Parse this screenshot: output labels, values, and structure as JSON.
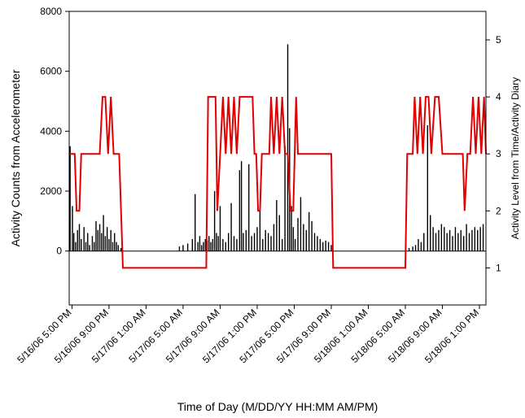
{
  "chart_data": {
    "type": "line",
    "xlabel": "Time of Day (M/DD/YY HH:MM AM/PM)",
    "ylabel_left": "Activity Counts from Accelerometer",
    "ylabel_right": "Activity Level from Time/Activity Diary",
    "x_unit": "hours from 5/16/06 5:00 PM",
    "xlim": [
      -0.3,
      44.7
    ],
    "ylim_left": [
      -1800,
      8000
    ],
    "ylim_right": [
      0.35,
      5.5
    ],
    "x_tick_values": [
      0,
      4,
      8,
      12,
      16,
      20,
      24,
      28,
      32,
      36,
      40,
      44
    ],
    "x_tick_labels": [
      "5/16/06 5:00 PM",
      "5/16/06 9:00 PM",
      "5/17/06 1:00 AM",
      "5/17/06 5:00 AM",
      "5/17/06 9:00 AM",
      "5/17/06 1:00 PM",
      "5/17/06 5:00 PM",
      "5/17/06 9:00 PM",
      "5/18/06 1:00 AM",
      "5/18/06 5:00 AM",
      "5/18/06 9:00 AM",
      "5/18/06 1:00 PM"
    ],
    "y_left_ticks": [
      0,
      2000,
      4000,
      6000,
      8000
    ],
    "y_left_tick_labels": [
      "0",
      "2000",
      "4000",
      "6000",
      "8000"
    ],
    "y_right_ticks": [
      1,
      2,
      3,
      4,
      5
    ],
    "y_right_tick_labels": [
      "1",
      "2",
      "3",
      "4",
      "5"
    ],
    "grid": false,
    "colors": {
      "counts": "#000000",
      "diary": "#e00000"
    },
    "series": [
      {
        "axis": "left",
        "style": "spikes",
        "x": [
          -0.2,
          0.05,
          0.2,
          0.4,
          0.6,
          0.8,
          1.0,
          1.3,
          1.5,
          1.7,
          1.9,
          2.2,
          2.4,
          2.6,
          2.8,
          3.0,
          3.2,
          3.4,
          3.6,
          3.8,
          4.0,
          4.2,
          4.4,
          4.6,
          4.8,
          5.0,
          5.3,
          11.6,
          12.0,
          12.5,
          13.0,
          13.3,
          13.6,
          13.8,
          14.0,
          14.2,
          14.4,
          14.6,
          14.8,
          15.0,
          15.2,
          15.4,
          15.6,
          15.8,
          16.0,
          16.3,
          16.6,
          16.9,
          17.2,
          17.5,
          17.8,
          18.1,
          18.3,
          18.5,
          18.8,
          19.1,
          19.4,
          19.7,
          20.0,
          20.3,
          20.6,
          20.9,
          21.2,
          21.5,
          21.8,
          22.1,
          22.4,
          22.7,
          23.0,
          23.3,
          23.5,
          23.7,
          23.9,
          24.1,
          24.4,
          24.7,
          25.0,
          25.3,
          25.6,
          25.9,
          26.2,
          26.5,
          26.8,
          27.1,
          27.4,
          27.7,
          28.0,
          36.4,
          36.8,
          37.1,
          37.4,
          37.7,
          38.0,
          38.4,
          38.7,
          39.0,
          39.3,
          39.6,
          39.9,
          40.2,
          40.5,
          40.8,
          41.1,
          41.4,
          41.7,
          42.0,
          42.3,
          42.6,
          42.9,
          43.2,
          43.5,
          43.8,
          44.1,
          44.4
        ],
        "y": [
          3500,
          1500,
          600,
          300,
          700,
          900,
          400,
          800,
          300,
          600,
          200,
          500,
          300,
          1000,
          700,
          900,
          600,
          1200,
          500,
          800,
          400,
          700,
          300,
          600,
          300,
          200,
          100,
          150,
          200,
          250,
          400,
          1900,
          300,
          500,
          200,
          300,
          400,
          350,
          500,
          300,
          400,
          2000,
          600,
          500,
          1500,
          400,
          300,
          600,
          1600,
          500,
          400,
          2700,
          3000,
          600,
          700,
          2900,
          500,
          600,
          800,
          1400,
          400,
          700,
          600,
          500,
          900,
          1700,
          1200,
          400,
          3500,
          6900,
          4100,
          1500,
          800,
          400,
          1100,
          1800,
          900,
          700,
          1300,
          1000,
          600,
          500,
          400,
          300,
          350,
          300,
          200,
          100,
          150,
          200,
          400,
          300,
          600,
          4200,
          1200,
          800,
          600,
          700,
          900,
          800,
          600,
          700,
          500,
          800,
          600,
          700,
          500,
          900,
          600,
          700,
          800,
          700,
          800,
          900
        ]
      },
      {
        "axis": "right",
        "style": "step-line",
        "x": [
          -0.3,
          0.0,
          0.3,
          0.5,
          0.8,
          1.0,
          3.0,
          3.3,
          3.6,
          3.9,
          4.2,
          4.5,
          4.8,
          5.1,
          5.3,
          5.5,
          5.8,
          6.0,
          14.5,
          14.7,
          15.5,
          15.7,
          16.0,
          16.3,
          16.6,
          16.9,
          17.2,
          17.5,
          17.8,
          18.1,
          18.4,
          18.7,
          19.5,
          19.7,
          19.9,
          20.1,
          20.3,
          20.5,
          20.9,
          21.3,
          21.5,
          21.8,
          22.1,
          22.4,
          22.7,
          23.0,
          23.3,
          23.6,
          23.9,
          24.2,
          24.4,
          24.6,
          28.0,
          28.2,
          36.0,
          36.2,
          36.8,
          37.0,
          37.3,
          37.6,
          37.9,
          38.2,
          38.5,
          38.8,
          39.2,
          39.6,
          40.0,
          40.3,
          42.2,
          42.4,
          42.7,
          43.0,
          43.3,
          43.6,
          43.9,
          44.2,
          44.5,
          44.7
        ],
        "y": [
          3,
          3,
          3,
          2,
          2,
          3,
          3,
          4,
          4,
          3,
          4,
          3,
          3,
          3,
          2,
          1,
          1,
          1,
          1,
          4,
          4,
          2,
          3,
          4,
          3,
          4,
          3,
          4,
          3,
          4,
          4,
          4,
          4,
          3,
          3,
          2,
          2,
          3,
          3,
          3,
          4,
          3,
          4,
          3,
          4,
          3,
          3,
          2,
          2,
          4,
          3,
          3,
          3,
          1,
          1,
          3,
          3,
          4,
          3,
          4,
          3,
          4,
          4,
          3,
          4,
          4,
          3,
          3,
          3,
          2,
          3,
          3,
          4,
          3,
          4,
          3,
          4,
          3
        ]
      }
    ]
  }
}
